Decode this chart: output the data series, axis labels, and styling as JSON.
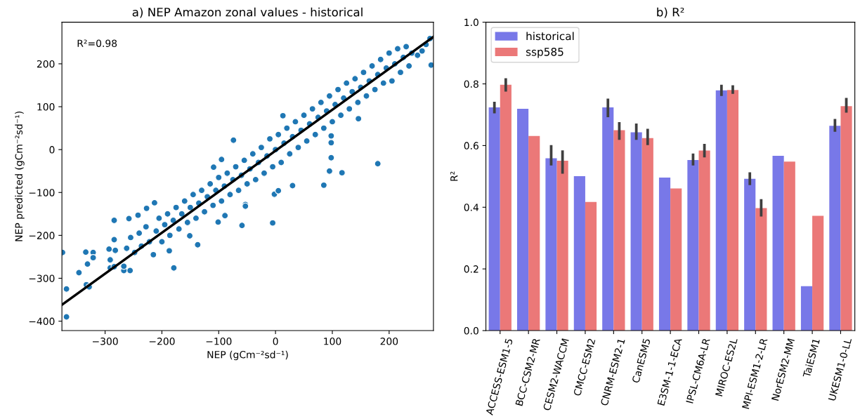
{
  "chart_data": [
    {
      "type": "scatter",
      "title": "a) NEP Amazon zonal values - historical",
      "xlabel": "NEP (gCm⁻²sd⁻¹)",
      "ylabel": "NEP predicted (gCm⁻²sd⁻¹)",
      "xlim": [
        -376,
        278
      ],
      "ylim": [
        -422,
        297
      ],
      "xticks": [
        -300,
        -200,
        -100,
        0,
        100,
        200
      ],
      "yticks": [
        -400,
        -300,
        -200,
        -100,
        0,
        100,
        200
      ],
      "grid": false,
      "legend": false,
      "annotations": [
        "R²=0.98"
      ],
      "series": [
        {
          "type": "scatter",
          "color": "#1f77b4",
          "marker": "circle",
          "x": [
            -74,
            180,
            85,
            95,
            117,
            98,
            98,
            98,
            146,
            274,
            272,
            -2,
            5,
            30,
            13,
            -53,
            -95,
            -109,
            -375,
            -368,
            -368,
            -346,
            -334,
            -331,
            -333,
            -328,
            -321,
            -321,
            -293,
            -291,
            -284,
            -284,
            -282,
            -291,
            -284,
            -267,
            -256,
            -267,
            -258,
            -242,
            -227,
            -213,
            -179,
            -187,
            -151,
            -137,
            -101,
            -59,
            -5,
            -53,
            -89,
            -262,
            -255,
            -248,
            -240,
            -236,
            -228,
            -222,
            -215,
            -210,
            -205,
            -200,
            -195,
            -190,
            -186,
            -180,
            -175,
            -170,
            -165,
            -160,
            -155,
            -150,
            -145,
            -140,
            -135,
            -130,
            -125,
            -120,
            -115,
            -110,
            -105,
            -100,
            -95,
            -90,
            -85,
            -80,
            -75,
            -70,
            -65,
            -60,
            -55,
            -50,
            -45,
            -40,
            -35,
            -30,
            -25,
            -20,
            -15,
            -10,
            -5,
            0,
            5,
            10,
            15,
            20,
            25,
            30,
            35,
            40,
            45,
            50,
            55,
            60,
            65,
            70,
            75,
            80,
            85,
            90,
            95,
            100,
            105,
            110,
            115,
            120,
            125,
            130,
            135,
            140,
            145,
            150,
            155,
            160,
            165,
            170,
            175,
            180,
            185,
            190,
            195,
            200,
            205,
            210,
            215,
            220,
            225,
            230,
            235,
            240,
            250,
            258,
            265
          ],
          "values": [
            22,
            -33,
            -83,
            -50,
            -54,
            -19,
            16,
            32,
            72,
            197,
            259,
            -104,
            -96,
            -84,
            79,
            -128,
            -23,
            -41,
            -240,
            -325,
            -390,
            -287,
            -239,
            -267,
            -315,
            -320,
            -240,
            -252,
            -232,
            -257,
            -165,
            -210,
            -235,
            -276,
            -273,
            -282,
            -282,
            -272,
            -161,
            -153,
            -137,
            -124,
            -276,
            -236,
            -201,
            -222,
            -169,
            -177,
            -171,
            -132,
            -154,
            -230,
            -205,
            -240,
            -195,
            -225,
            -180,
            -215,
            -245,
            -190,
            -160,
            -215,
            -175,
            -150,
            -200,
            -165,
            -135,
            -185,
            -150,
            -120,
            -170,
            -135,
            -105,
            -160,
            -125,
            -95,
            -145,
            -110,
            -80,
            -130,
            -95,
            -65,
            -120,
            -85,
            -55,
            -105,
            -70,
            -40,
            -95,
            -60,
            -25,
            -80,
            -45,
            -10,
            -70,
            -30,
            5,
            -55,
            -15,
            25,
            -40,
            0,
            35,
            -30,
            15,
            50,
            -10,
            30,
            65,
            5,
            45,
            80,
            20,
            60,
            95,
            35,
            75,
            110,
            50,
            90,
            125,
            65,
            105,
            140,
            80,
            120,
            155,
            95,
            135,
            165,
            110,
            145,
            180,
            125,
            160,
            195,
            140,
            175,
            210,
            155,
            190,
            225,
            160,
            200,
            235,
            180,
            215,
            240,
            195,
            225,
            220,
            230,
            245
          ]
        },
        {
          "type": "line",
          "color": "#000000",
          "marker": "none",
          "x": [
            -376,
            278
          ],
          "values": [
            -362,
            263
          ]
        }
      ]
    },
    {
      "type": "bar",
      "title": "b) R²",
      "ylabel": "R²",
      "categories": [
        "ACCESS-ESM1-5",
        "BCC-CSM2-MR",
        "CESM2-WACCM",
        "CMCC-ESM2",
        "CNRM-ESM2-1",
        "CanESM5",
        "E3SM-1-1-ECA",
        "IPSL-CM6A-LR",
        "MIROC-ES2L",
        "MPI-ESM1-2-LR",
        "NorESM2-MM",
        "TaiESM1",
        "UKESM1-0-LL"
      ],
      "ylim": [
        0,
        1
      ],
      "yticks": [
        {
          "value": 0,
          "label": "0.0"
        },
        {
          "value": 0.2,
          "label": "0.2"
        },
        {
          "value": 0.4,
          "label": "0.4"
        },
        {
          "value": 0.6,
          "label": "0.6"
        },
        {
          "value": 0.8,
          "label": "0.8"
        },
        {
          "value": 1,
          "label": "1.0"
        }
      ],
      "grid": false,
      "legend": "top left",
      "series": [
        {
          "name": "historical",
          "color": "#7878e8",
          "values": [
            0.724,
            0.719,
            0.559,
            0.501,
            0.724,
            0.643,
            0.496,
            0.553,
            0.779,
            0.492,
            0.567,
            0.144,
            0.664
          ],
          "errors": [
            [
              0.709,
              0.738
            ],
            null,
            [
              0.54,
              0.597
            ],
            null,
            [
              0.696,
              0.748
            ],
            [
              0.623,
              0.667
            ],
            null,
            [
              0.54,
              0.57
            ],
            [
              0.765,
              0.793
            ],
            [
              0.476,
              0.509
            ],
            null,
            null,
            [
              0.649,
              0.682
            ]
          ]
        },
        {
          "name": "ssp585",
          "color": "#eb7878",
          "values": [
            0.797,
            0.631,
            0.551,
            0.417,
            0.65,
            0.624,
            0.461,
            0.584,
            0.78,
            0.397,
            0.548,
            0.372,
            0.728
          ],
          "errors": [
            [
              0.779,
              0.814
            ],
            null,
            [
              0.513,
              0.58
            ],
            null,
            [
              0.623,
              0.672
            ],
            [
              0.606,
              0.65
            ],
            null,
            [
              0.566,
              0.601
            ],
            [
              0.772,
              0.791
            ],
            [
              0.374,
              0.422
            ],
            null,
            null,
            [
              0.711,
              0.75
            ]
          ]
        }
      ]
    }
  ]
}
